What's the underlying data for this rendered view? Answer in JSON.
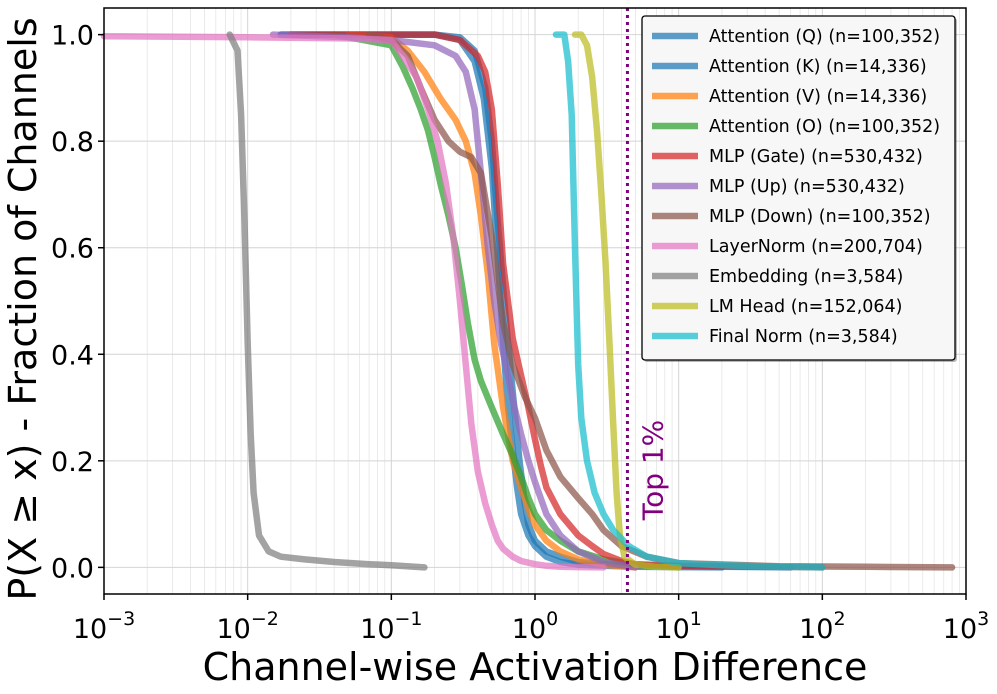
{
  "chart_data": {
    "type": "line",
    "title": "",
    "xlabel": "Channel-wise Activation Difference",
    "ylabel": "P(X ≥ x) - Fraction of Channels",
    "xscale": "log",
    "xlim": [
      0.001,
      1000
    ],
    "ylim": [
      -0.05,
      1.05
    ],
    "x_ticks": [
      {
        "value": 0.001,
        "base": "10",
        "exp": "−3"
      },
      {
        "value": 0.01,
        "base": "10",
        "exp": "−2"
      },
      {
        "value": 0.1,
        "base": "10",
        "exp": "−1"
      },
      {
        "value": 1,
        "base": "10",
        "exp": "0"
      },
      {
        "value": 10,
        "base": "10",
        "exp": "1"
      },
      {
        "value": 100,
        "base": "10",
        "exp": "2"
      },
      {
        "value": 1000,
        "base": "10",
        "exp": "3"
      }
    ],
    "y_ticks": [
      {
        "value": 0.0,
        "label": "0.0"
      },
      {
        "value": 0.2,
        "label": "0.2"
      },
      {
        "value": 0.4,
        "label": "0.4"
      },
      {
        "value": 0.6,
        "label": "0.6"
      },
      {
        "value": 0.8,
        "label": "0.8"
      },
      {
        "value": 1.0,
        "label": "1.0"
      }
    ],
    "grid": true,
    "legend_position": "top-right",
    "annotations": [
      {
        "type": "vline",
        "x": 4.4,
        "label": "Top 1%",
        "color": "#800080",
        "style": "dotted"
      }
    ],
    "series": [
      {
        "name": "Attention (Q) (n=100,352)",
        "color": "#1f77b4",
        "x": [
          0.017,
          0.1,
          0.2,
          0.3,
          0.38,
          0.45,
          0.5,
          0.55,
          0.62,
          0.7,
          0.78,
          0.85,
          0.9,
          1.0,
          1.2,
          1.5,
          2.0,
          3.0,
          5.0,
          10,
          20,
          60
        ],
        "y": [
          1.0,
          1.0,
          1.0,
          0.995,
          0.97,
          0.9,
          0.8,
          0.65,
          0.48,
          0.33,
          0.2,
          0.12,
          0.08,
          0.05,
          0.03,
          0.02,
          0.01,
          0.006,
          0.003,
          0.002,
          0.001,
          0.0
        ]
      },
      {
        "name": "Attention (K) (n=14,336)",
        "color": "#1f77b4",
        "x": [
          0.017,
          0.1,
          0.2,
          0.3,
          0.38,
          0.44,
          0.5,
          0.55,
          0.6,
          0.65,
          0.7,
          0.75,
          0.8,
          0.9,
          1.0,
          1.2,
          1.5,
          2.0,
          3.0,
          5.0,
          10,
          20
        ],
        "y": [
          1.0,
          1.0,
          1.0,
          0.99,
          0.95,
          0.88,
          0.75,
          0.58,
          0.42,
          0.3,
          0.22,
          0.15,
          0.1,
          0.06,
          0.04,
          0.02,
          0.01,
          0.005,
          0.003,
          0.001,
          0.0005,
          0.0
        ]
      },
      {
        "name": "Attention (V) (n=14,336)",
        "color": "#ff7f0e",
        "x": [
          0.05,
          0.1,
          0.13,
          0.17,
          0.22,
          0.28,
          0.33,
          0.38,
          0.42,
          0.47,
          0.52,
          0.6,
          0.7,
          0.8,
          0.9,
          1.0,
          1.2,
          1.5,
          2.0,
          3.0,
          5.0
        ],
        "y": [
          1.0,
          0.995,
          0.97,
          0.93,
          0.88,
          0.84,
          0.8,
          0.74,
          0.66,
          0.55,
          0.42,
          0.3,
          0.2,
          0.15,
          0.11,
          0.08,
          0.05,
          0.03,
          0.015,
          0.005,
          0.0
        ]
      },
      {
        "name": "Attention (O) (n=100,352)",
        "color": "#2ca02c",
        "x": [
          0.04,
          0.1,
          0.12,
          0.14,
          0.16,
          0.18,
          0.2,
          0.22,
          0.25,
          0.28,
          0.31,
          0.34,
          0.38,
          0.42,
          0.5,
          0.6,
          0.7,
          0.8,
          0.9,
          1.0,
          1.2,
          1.5,
          2.0,
          3.0,
          5.0,
          10
        ],
        "y": [
          1.0,
          0.98,
          0.94,
          0.9,
          0.86,
          0.82,
          0.77,
          0.72,
          0.66,
          0.6,
          0.53,
          0.46,
          0.39,
          0.35,
          0.3,
          0.25,
          0.21,
          0.17,
          0.13,
          0.1,
          0.07,
          0.05,
          0.03,
          0.015,
          0.005,
          0.0
        ]
      },
      {
        "name": "MLP (Gate) (n=530,432)",
        "color": "#d62728",
        "x": [
          0.02,
          0.1,
          0.2,
          0.3,
          0.4,
          0.45,
          0.5,
          0.55,
          0.6,
          0.7,
          0.8,
          0.9,
          1.0,
          1.1,
          1.2,
          1.5,
          2.0,
          2.5,
          3.0,
          4.0,
          5.0,
          10,
          50,
          100
        ],
        "y": [
          1.0,
          1.0,
          1.0,
          0.99,
          0.96,
          0.93,
          0.86,
          0.72,
          0.57,
          0.43,
          0.36,
          0.3,
          0.24,
          0.19,
          0.15,
          0.1,
          0.06,
          0.04,
          0.025,
          0.012,
          0.006,
          0.003,
          0.001,
          0.0
        ]
      },
      {
        "name": "MLP (Up) (n=530,432)",
        "color": "#9467bd",
        "x": [
          0.015,
          0.05,
          0.1,
          0.2,
          0.28,
          0.33,
          0.38,
          0.42,
          0.47,
          0.52,
          0.58,
          0.65,
          0.72,
          0.8,
          0.9,
          1.0,
          1.2,
          1.5,
          2.0,
          3.0,
          5.0
        ],
        "y": [
          1.0,
          0.995,
          0.99,
          0.98,
          0.96,
          0.93,
          0.86,
          0.74,
          0.6,
          0.5,
          0.42,
          0.36,
          0.3,
          0.25,
          0.2,
          0.16,
          0.1,
          0.06,
          0.03,
          0.01,
          0.0
        ]
      },
      {
        "name": "MLP (Down) (n=100,352)",
        "color": "#8c564b",
        "x": [
          0.07,
          0.1,
          0.13,
          0.16,
          0.2,
          0.25,
          0.3,
          0.36,
          0.42,
          0.5,
          0.6,
          0.7,
          0.85,
          1.0,
          1.2,
          1.5,
          2.0,
          2.5,
          3.0,
          4.0,
          6.0,
          10,
          50,
          200,
          800
        ],
        "y": [
          1.0,
          0.99,
          0.96,
          0.9,
          0.84,
          0.8,
          0.78,
          0.77,
          0.74,
          0.62,
          0.46,
          0.38,
          0.32,
          0.28,
          0.22,
          0.17,
          0.13,
          0.1,
          0.07,
          0.04,
          0.02,
          0.008,
          0.002,
          0.001,
          0.0
        ]
      },
      {
        "name": "LayerNorm (n=200,704)",
        "color": "#e377c2",
        "x": [
          0.001,
          0.01,
          0.05,
          0.1,
          0.12,
          0.15,
          0.18,
          0.21,
          0.24,
          0.27,
          0.3,
          0.33,
          0.36,
          0.4,
          0.45,
          0.5,
          0.55,
          0.6,
          0.7,
          0.8,
          1.0,
          1.2,
          1.5,
          2.0,
          3.0
        ],
        "y": [
          0.997,
          0.995,
          0.993,
          0.99,
          0.96,
          0.92,
          0.86,
          0.8,
          0.72,
          0.62,
          0.5,
          0.38,
          0.27,
          0.18,
          0.12,
          0.08,
          0.05,
          0.035,
          0.02,
          0.012,
          0.006,
          0.003,
          0.001,
          0.0005,
          0.0
        ]
      },
      {
        "name": "Embedding (n=3,584)",
        "color": "#7f7f7f",
        "x": [
          0.0075,
          0.0085,
          0.009,
          0.0095,
          0.01,
          0.0105,
          0.011,
          0.012,
          0.014,
          0.017,
          0.025,
          0.04,
          0.07,
          0.1,
          0.17
        ],
        "y": [
          1.0,
          0.97,
          0.85,
          0.65,
          0.42,
          0.25,
          0.14,
          0.06,
          0.03,
          0.02,
          0.015,
          0.01,
          0.006,
          0.004,
          0.0
        ]
      },
      {
        "name": "LM Head (n=152,064)",
        "color": "#bcbd22",
        "x": [
          1.9,
          2.1,
          2.3,
          2.5,
          2.7,
          2.9,
          3.1,
          3.3,
          3.5,
          3.7,
          3.9,
          4.2,
          5.0,
          7.0,
          10
        ],
        "y": [
          1.0,
          1.0,
          0.98,
          0.92,
          0.82,
          0.7,
          0.57,
          0.42,
          0.27,
          0.14,
          0.06,
          0.02,
          0.005,
          0.001,
          0.0
        ]
      },
      {
        "name": "Final Norm (n=3,584)",
        "color": "#17becf",
        "x": [
          1.4,
          1.6,
          1.7,
          1.8,
          1.85,
          1.9,
          1.95,
          2.0,
          2.1,
          2.3,
          2.6,
          3.0,
          3.5,
          4.5,
          6.0,
          10,
          20,
          50,
          100
        ],
        "y": [
          1.0,
          1.0,
          0.95,
          0.85,
          0.72,
          0.6,
          0.48,
          0.38,
          0.28,
          0.2,
          0.14,
          0.1,
          0.07,
          0.04,
          0.02,
          0.008,
          0.004,
          0.001,
          0.0
        ]
      }
    ]
  }
}
